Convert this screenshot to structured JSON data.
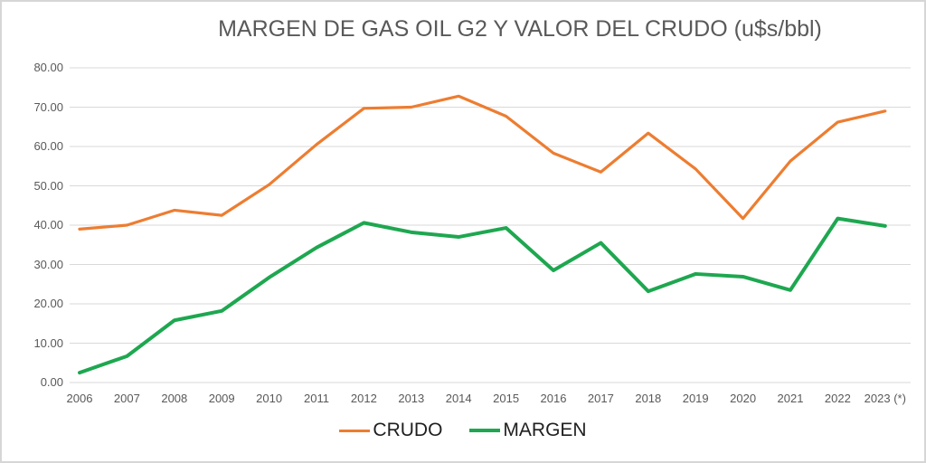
{
  "chart_data": {
    "type": "line",
    "title": "MARGEN DE GAS OIL G2 Y VALOR DEL CRUDO (u$s/bbl)",
    "xlabel": "",
    "ylabel": "",
    "categories": [
      "2006",
      "2007",
      "2008",
      "2009",
      "2010",
      "2011",
      "2012",
      "2013",
      "2014",
      "2015",
      "2016",
      "2017",
      "2018",
      "2019",
      "2020",
      "2021",
      "2022",
      "2023 (*)"
    ],
    "series": [
      {
        "name": "CRUDO",
        "color": "#ED7D31",
        "stroke_width": 3.2,
        "values": [
          39.0,
          40.0,
          43.8,
          42.5,
          50.3,
          60.5,
          69.7,
          70.0,
          72.8,
          67.7,
          58.3,
          53.5,
          63.4,
          54.3,
          41.7,
          56.3,
          66.2,
          69.0
        ]
      },
      {
        "name": "MARGEN",
        "color": "#1EA750",
        "stroke_width": 4,
        "values": [
          2.5,
          6.7,
          15.8,
          18.2,
          26.7,
          34.3,
          40.6,
          38.2,
          37.0,
          39.3,
          28.5,
          35.5,
          23.2,
          27.6,
          26.9,
          23.5,
          41.7,
          39.8
        ]
      }
    ],
    "ylim": [
      0,
      80
    ],
    "y_tick_step": 10,
    "y_tick_labels": [
      "80.00",
      "70.00",
      "60.00",
      "50.00",
      "40.00",
      "30.00",
      "20.00",
      "10.00",
      "0.00"
    ],
    "grid": true,
    "gridline_color": "#D9D9D9",
    "tick_label_color": "#595959",
    "title_color": "#595959",
    "legend_position": "bottom"
  }
}
